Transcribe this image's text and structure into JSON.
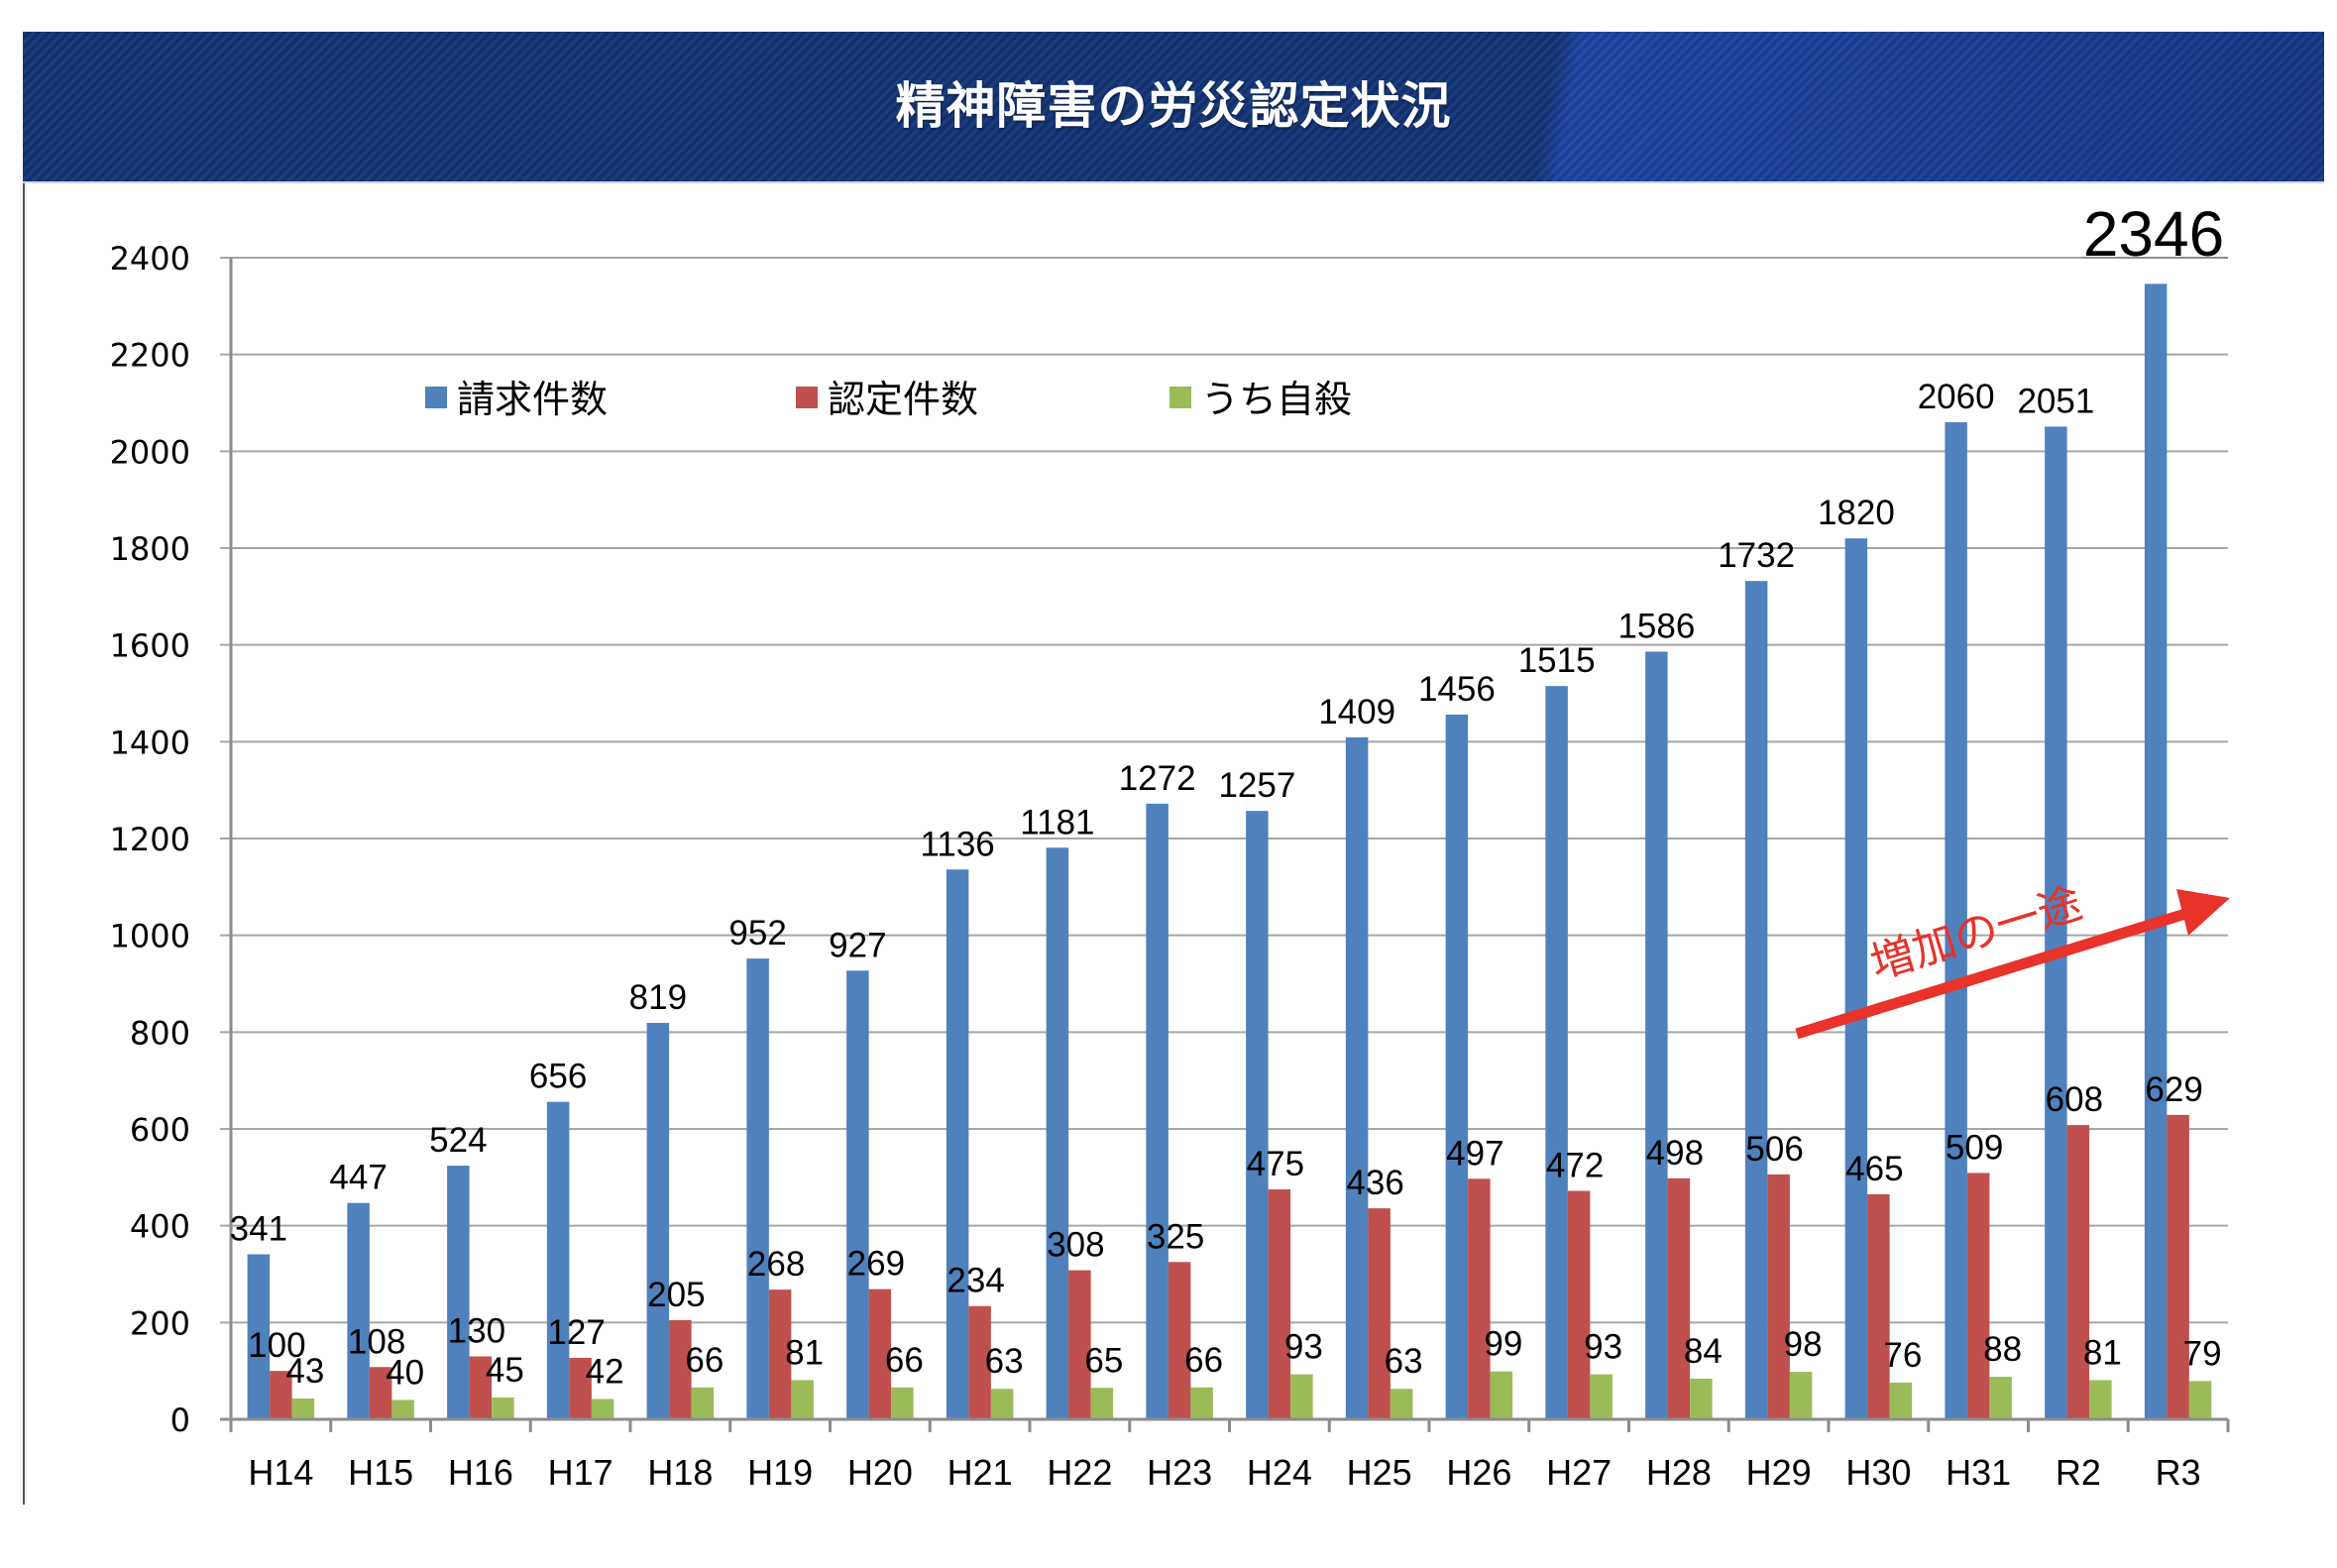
{
  "header": {
    "title": "精神障害の労災認定状況"
  },
  "colors": {
    "header_bg": "#133476",
    "series_claims": "#4F81BD",
    "series_approved": "#C0504D",
    "series_suicide": "#9BBB59",
    "annotation": "#E8322A",
    "gridline": "#A6A6A6"
  },
  "chart_data": {
    "type": "bar",
    "title": "精神障害の労災認定状況",
    "xlabel": "",
    "ylabel": "",
    "categories": [
      "H14",
      "H15",
      "H16",
      "H17",
      "H18",
      "H19",
      "H20",
      "H21",
      "H22",
      "H23",
      "H24",
      "H25",
      "H26",
      "H27",
      "H28",
      "H29",
      "H30",
      "H31",
      "R2",
      "R3"
    ],
    "series": [
      {
        "name": "請求件数",
        "color": "#4F81BD",
        "values": [
          341,
          447,
          524,
          656,
          819,
          952,
          927,
          1136,
          1181,
          1272,
          1257,
          1409,
          1456,
          1515,
          1586,
          1732,
          1820,
          2060,
          2051,
          2346
        ]
      },
      {
        "name": "認定件数",
        "color": "#C0504D",
        "values": [
          100,
          108,
          130,
          127,
          205,
          268,
          269,
          234,
          308,
          325,
          475,
          436,
          497,
          472,
          498,
          506,
          465,
          509,
          608,
          629
        ]
      },
      {
        "name": "うち自殺",
        "color": "#9BBB59",
        "values": [
          43,
          40,
          45,
          42,
          66,
          81,
          66,
          63,
          65,
          66,
          93,
          63,
          99,
          93,
          84,
          98,
          76,
          88,
          81,
          79
        ]
      }
    ],
    "ylim": [
      0,
      2400
    ],
    "yticks": [
      0,
      200,
      400,
      600,
      800,
      1000,
      1200,
      1400,
      1600,
      1800,
      2000,
      2200,
      2400
    ],
    "grid": true,
    "legend": {
      "position": "top-left",
      "entries": [
        "請求件数",
        "認定件数",
        "うち自殺"
      ]
    },
    "data_labels": true,
    "highlighted_label": {
      "series": "請求件数",
      "category": "R3",
      "value": "2346"
    },
    "annotations": [
      {
        "text": "増加の一途",
        "type": "arrow",
        "direction": "up-right",
        "color": "#E8322A"
      }
    ]
  }
}
